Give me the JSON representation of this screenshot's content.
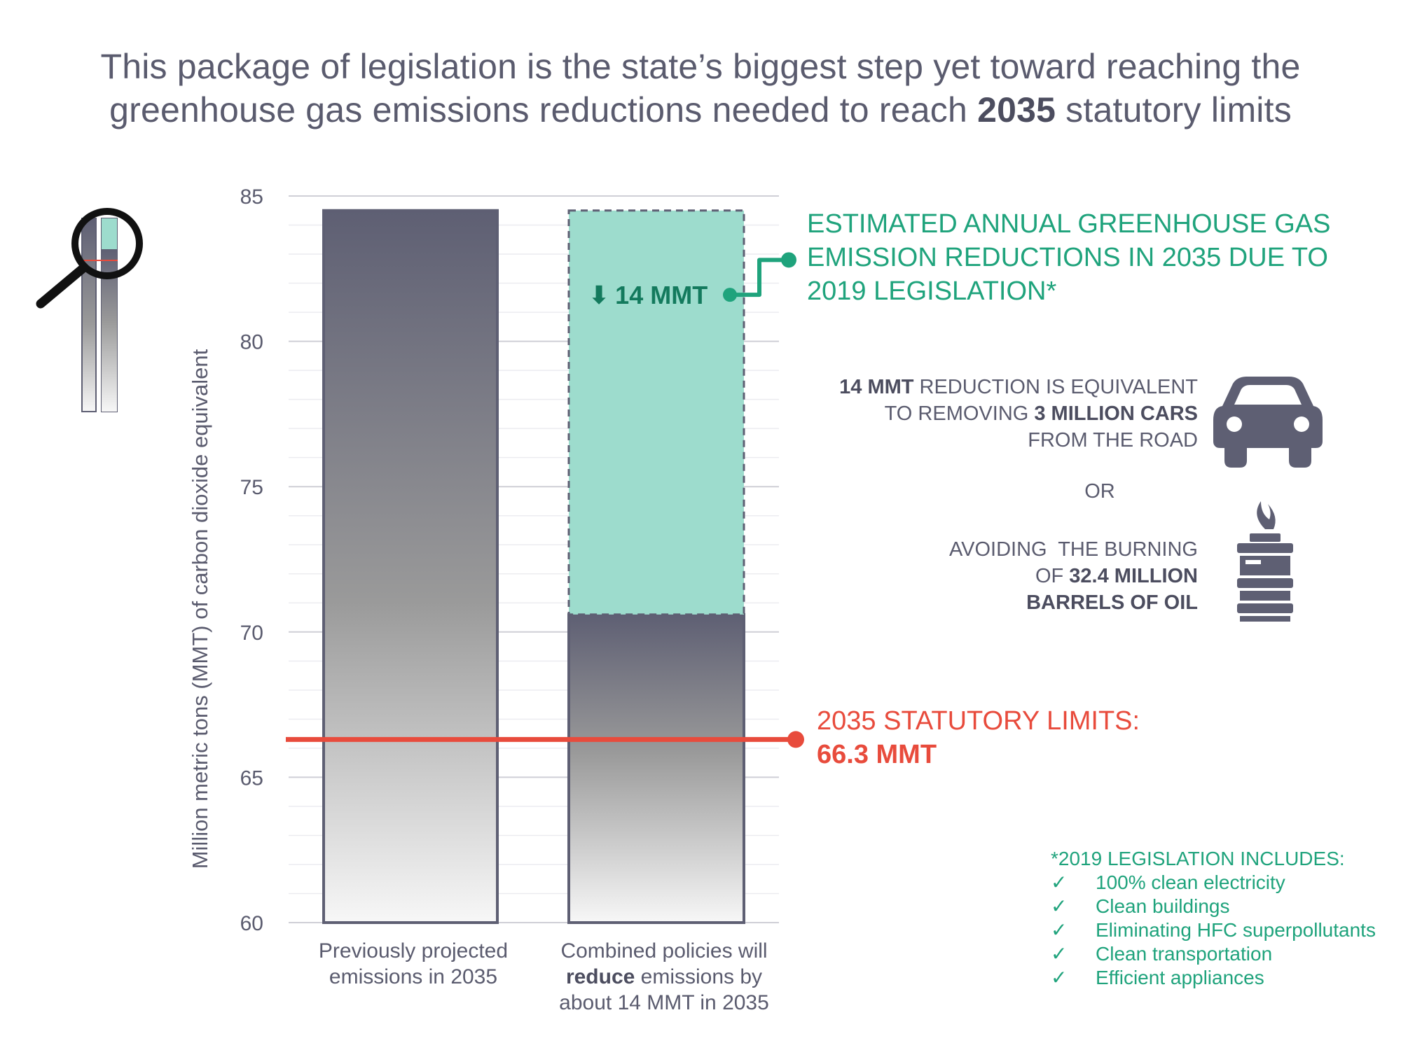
{
  "title": {
    "line1": "This package of legislation is the state’s biggest step yet toward reaching the",
    "line2_before": "greenhouse gas emissions reductions needed to reach ",
    "line2_bold": "2035",
    "line2_after": " statutory limits"
  },
  "chart_data": {
    "type": "bar",
    "ylabel": "Million metric tons (MMT) of carbon dioxide equivalent",
    "ylim": [
      60,
      85
    ],
    "yticks": [
      "60",
      "65",
      "70",
      "75",
      "80",
      "85"
    ],
    "categories": [
      {
        "lines": [
          "Previously projected",
          "emissions in 2035"
        ]
      },
      {
        "lines_before": "Combined policies will",
        "bold": "reduce",
        "after": " emissions by",
        "last": "about 14 MMT in 2035"
      }
    ],
    "bars": [
      {
        "value": 84.5
      },
      {
        "value": 70.6,
        "reduction_top": 84.5
      }
    ],
    "reduction_label": "14 MMT",
    "statutory_limit": 66.3
  },
  "reduction_annotation": {
    "text": "ESTIMATED ANNUAL GREENHOUSE GAS EMISSION REDUCTIONS IN 2035 DUE TO 2019 LEGISLATION*"
  },
  "equivalents": {
    "cars": {
      "bold1": "14 MMT",
      "text1": " REDUCTION IS EQUIVALENT",
      "text2": "TO REMOVING ",
      "bold2": "3 MILLION CARS",
      "text3": "FROM THE ROAD"
    },
    "or": "OR",
    "oil": {
      "text1": "AVOIDING  THE BURNING",
      "text2": "OF ",
      "bold1": "32.4 MILLION",
      "bold2": "BARRELS OF OIL"
    }
  },
  "limit": {
    "label": "2035 STATUTORY LIMITS:",
    "value": "66.3 MMT"
  },
  "legislation": {
    "title": "*2019 LEGISLATION INCLUDES:",
    "check": "✓",
    "items": [
      "100% clean electricity",
      "Clean buildings",
      "Eliminating HFC superpollutants",
      "Clean transportation",
      "Efficient appliances"
    ]
  },
  "colors": {
    "bar_dark": "#5e5f73",
    "teal_fill": "#9ddccd",
    "green": "#1fa37c",
    "red": "#e84b3c",
    "text": "#5a5b6e"
  }
}
